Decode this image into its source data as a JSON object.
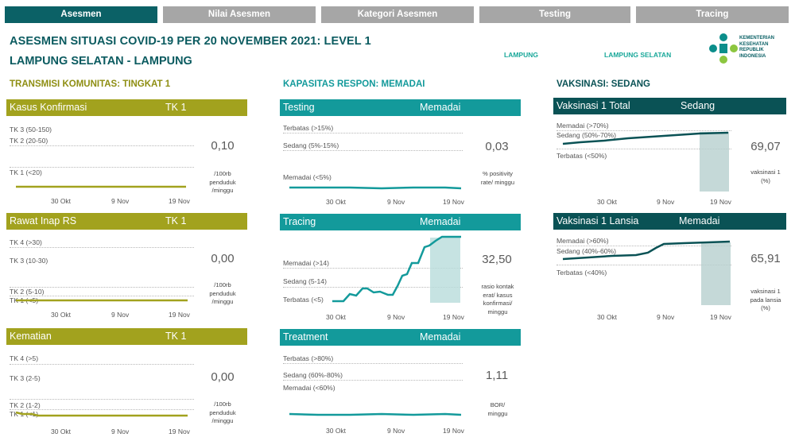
{
  "tabs": [
    "Asesmen",
    "Nilai Asesmen",
    "Kategori Asesmen",
    "Testing",
    "Tracing"
  ],
  "header": {
    "title": "ASESMEN SITUASI COVID-19 PER 20 NOVEMBER 2021: LEVEL 1",
    "subtitle": "LAMPUNG SELATAN - LAMPUNG",
    "links": [
      "LAMPUNG",
      "LAMPUNG SELATAN"
    ],
    "logo_text": "KEMENTERIAN\nKESEHATAN\nREPUBLIK\nINDONESIA"
  },
  "sections": {
    "transmisi": "TRANSMISI KOMUNITAS: TINGKAT 1",
    "kapasitas": "KAPASITAS RESPON: MEMADAI",
    "vaksinasi": "VAKSINASI: SEDANG"
  },
  "colors": {
    "tab_active": "#0b6166",
    "tab_inactive": "#a6a6a6",
    "transmisi": "#a2a21e",
    "kapasitas": "#139a9b",
    "vaksinasi": "#0a5255"
  },
  "panels": {
    "kasus": {
      "title": "Kasus Konfirmasi",
      "level": "TK 1",
      "value": "0,10",
      "unit": "/100rb\npenduduk\n/minggu",
      "thresholds": [
        "TK 3 (50-150)",
        "TK 2 (20-50)",
        "TK 1 (<20)"
      ]
    },
    "rawat": {
      "title": "Rawat Inap RS",
      "level": "TK 1",
      "value": "0,00",
      "unit": "/100rb\npenduduk\n/minggu",
      "thresholds": [
        "TK 4 (>30)",
        "TK 3 (10-30)",
        "TK 2 (5-10)",
        "TK 1 (<5)"
      ]
    },
    "kematian": {
      "title": "Kematian",
      "level": "TK 1",
      "value": "0,00",
      "unit": "/100rb\npenduduk\n/minggu",
      "thresholds": [
        "TK 4 (>5)",
        "TK 3 (2-5)",
        "TK 2 (1-2)",
        "TK 1 (<1)"
      ]
    },
    "testing": {
      "title": "Testing",
      "level": "Memadai",
      "value": "0,03",
      "unit": "% positivity\nrate/ minggu",
      "thresholds": [
        "Terbatas (>15%)",
        "Sedang (5%-15%)",
        "Memadai (<5%)"
      ]
    },
    "tracing": {
      "title": "Tracing",
      "level": "Memadai",
      "value": "32,50",
      "unit": "rasio kontak\nerat/ kasus\nkonfirmasi/\nminggu",
      "thresholds": [
        "Memadai (>14)",
        "Sedang (5-14)",
        "Terbatas (<5)"
      ]
    },
    "treatment": {
      "title": "Treatment",
      "level": "Memadai",
      "value": "1,11",
      "unit": "BOR/\nminggu",
      "thresholds": [
        "Terbatas (>80%)",
        "Sedang (60%-80%)",
        "Memadai (<60%)"
      ]
    },
    "vaks1": {
      "title": "Vaksinasi 1 Total",
      "level": "Sedang",
      "value": "69,07",
      "unit": "vaksinasi 1\n(%)",
      "thresholds": [
        "Memadai (>70%)",
        "Sedang (50%-70%)",
        "Terbatas (<50%)"
      ]
    },
    "lansia": {
      "title": "Vaksinasi 1 Lansia",
      "level": "Memadai",
      "value": "65,91",
      "unit": "vaksinasi 1\npada lansia\n(%)",
      "thresholds": [
        "Memadai (>60%)",
        "Sedang (40%-60%)",
        "Terbatas (<40%)"
      ]
    }
  },
  "x_ticks": [
    "30 Okt",
    "9 Nov",
    "19 Nov"
  ]
}
